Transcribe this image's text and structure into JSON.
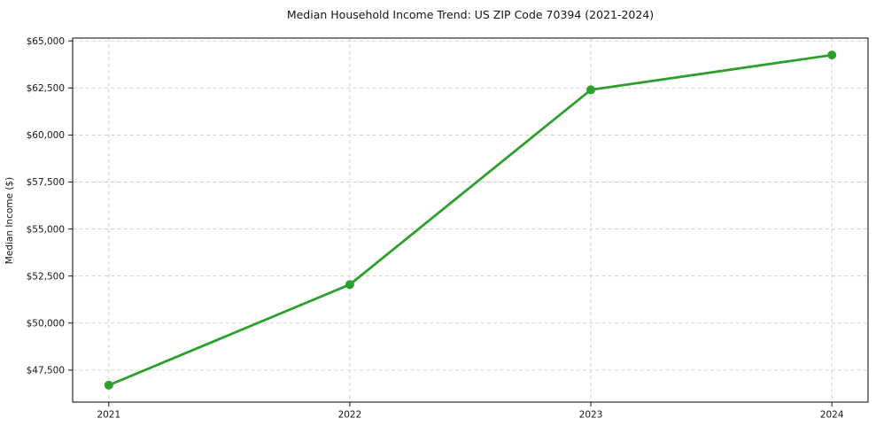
{
  "figure": {
    "background": "#ffffff"
  },
  "chart_data": {
    "type": "line",
    "title": "Median Household Income Trend: US ZIP Code 70394 (2021-2024)",
    "xlabel": "",
    "ylabel": "Median Income ($)",
    "x": [
      2021,
      2022,
      2023,
      2024
    ],
    "xtick_labels": [
      "2021",
      "2022",
      "2023",
      "2024"
    ],
    "values": [
      46700,
      52050,
      62400,
      64250
    ],
    "yticks": [
      47500,
      50000,
      52500,
      55000,
      57500,
      60000,
      62500,
      65000
    ],
    "ytick_labels": [
      "$47,500",
      "$50,000",
      "$52,500",
      "$55,000",
      "$57,500",
      "$60,000",
      "$62,500",
      "$65,000"
    ],
    "xlim": [
      2020.85,
      2024.15
    ],
    "ylim": [
      45800,
      65150
    ],
    "grid": true,
    "grid_style": "dashed",
    "grid_color": "#cccccc",
    "line_color": "#2ca02c",
    "marker": "circle",
    "legend": "none"
  }
}
